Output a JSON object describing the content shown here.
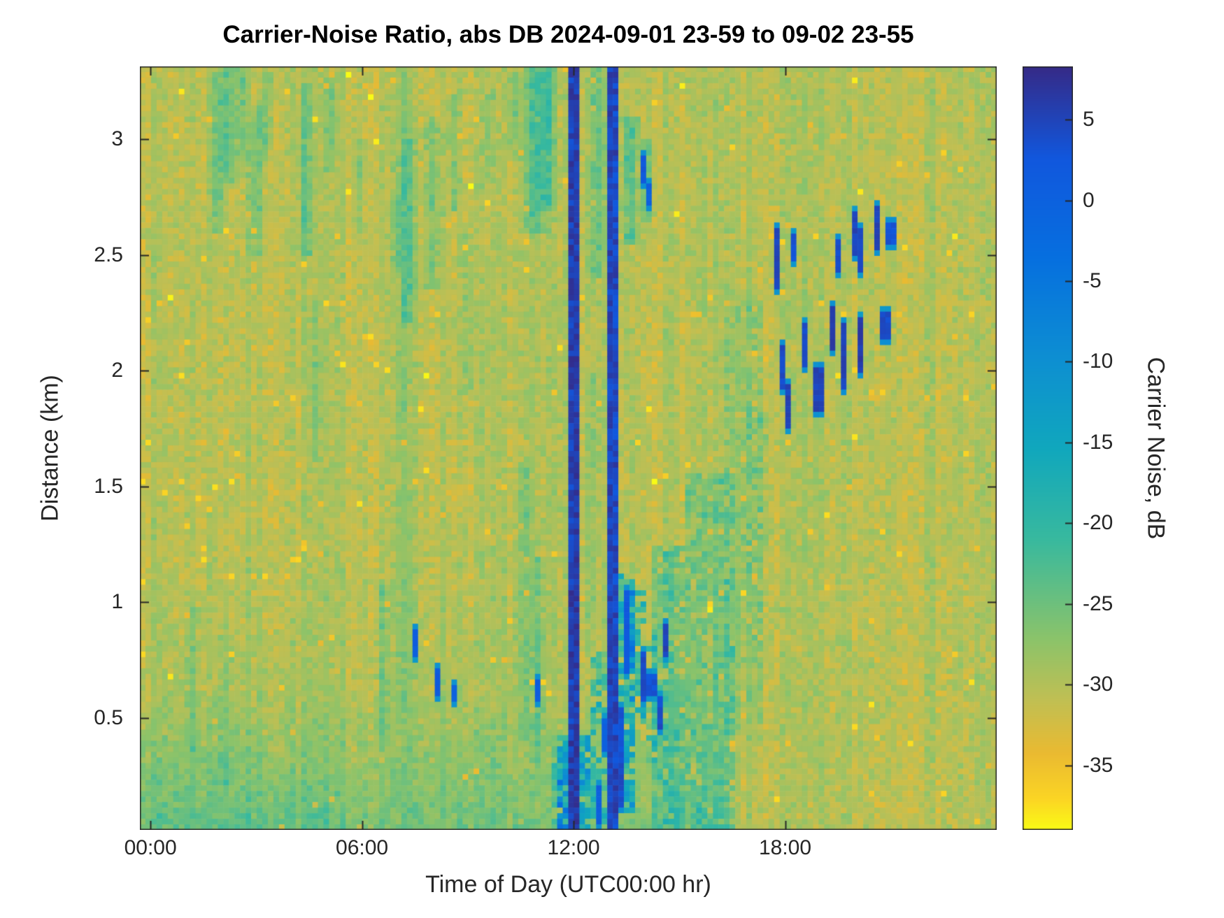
{
  "chart_data": {
    "type": "heatmap",
    "title": "Carrier-Noise Ratio, abs DB 2024-09-01 23-59 to 09-02 23-55",
    "xlabel": "Time of Day (UTC00:00 hr)",
    "ylabel": "Distance (km)",
    "colorbar_label": "Carrier Noise, dB",
    "x_range_hours": [
      -0.3,
      24.0
    ],
    "y_range_km": [
      0.015,
      3.315
    ],
    "value_range_db": [
      -39,
      8.3
    ],
    "x_ticks": [
      {
        "hour": 0,
        "label": "00:00"
      },
      {
        "hour": 6,
        "label": "06:00"
      },
      {
        "hour": 12,
        "label": "12:00"
      },
      {
        "hour": 18,
        "label": "18:00"
      }
    ],
    "y_ticks": [
      {
        "km": 0.5,
        "label": "0.5"
      },
      {
        "km": 1,
        "label": "1"
      },
      {
        "km": 1.5,
        "label": "1.5"
      },
      {
        "km": 2,
        "label": "2"
      },
      {
        "km": 2.5,
        "label": "2.5"
      },
      {
        "km": 3,
        "label": "3"
      }
    ],
    "colorbar_ticks": [
      {
        "db": 5,
        "label": "5"
      },
      {
        "db": 0,
        "label": "0"
      },
      {
        "db": -5,
        "label": "-5"
      },
      {
        "db": -10,
        "label": "-10"
      },
      {
        "db": -15,
        "label": "-15"
      },
      {
        "db": -20,
        "label": "-20"
      },
      {
        "db": -25,
        "label": "-25"
      },
      {
        "db": -30,
        "label": "-30"
      },
      {
        "db": -35,
        "label": "-35"
      }
    ],
    "legend_position": "right-colorbar",
    "grid_lines": false,
    "seed": 7,
    "grid": {
      "cols": 154,
      "rows": 137
    },
    "background": {
      "base_db": -30.2,
      "noise_db": 3.0,
      "column_banding_db": 2.4,
      "bright_speck_prob": 0.01,
      "bright_speck_drop": 6
    },
    "low_bands": [
      [
        -0.5,
        16.5,
        0.0,
        0.62,
        3.5
      ],
      [
        -0.5,
        10.5,
        0.0,
        1.3,
        1.5
      ],
      [
        -0.5,
        5.0,
        0.0,
        0.5,
        1.5
      ]
    ],
    "green_columns": [
      [
        1.9,
        0.25,
        2.6,
        3.3,
        7
      ],
      [
        2.2,
        0.3,
        2.8,
        3.35,
        8
      ],
      [
        2.6,
        0.22,
        2.9,
        3.35,
        6
      ],
      [
        3.0,
        0.3,
        2.5,
        3.15,
        5
      ],
      [
        3.3,
        0.2,
        2.9,
        3.3,
        5
      ],
      [
        4.4,
        0.28,
        2.5,
        3.25,
        7
      ],
      [
        4.65,
        0.2,
        1.6,
        2.3,
        4
      ],
      [
        5.1,
        0.2,
        2.85,
        3.3,
        5
      ],
      [
        5.9,
        0.2,
        2.6,
        3.0,
        4
      ],
      [
        6.6,
        0.22,
        0.4,
        1.1,
        4
      ],
      [
        7.15,
        0.5,
        0.5,
        3.3,
        2.5
      ],
      [
        7.3,
        0.28,
        2.2,
        3.0,
        6
      ],
      [
        7.0,
        0.2,
        2.45,
        2.75,
        5
      ],
      [
        8.0,
        0.3,
        2.35,
        3.1,
        6
      ],
      [
        8.6,
        0.22,
        2.7,
        3.2,
        5
      ],
      [
        9.0,
        0.25,
        1.9,
        2.6,
        4
      ],
      [
        9.6,
        0.22,
        2.8,
        3.2,
        4
      ],
      [
        10.3,
        0.25,
        2.9,
        3.3,
        5
      ],
      [
        10.9,
        0.4,
        2.6,
        3.35,
        8
      ],
      [
        11.25,
        0.3,
        2.7,
        3.35,
        9
      ],
      [
        10.6,
        0.3,
        0.4,
        1.6,
        4
      ],
      [
        11.0,
        0.25,
        0.3,
        1.2,
        5
      ],
      [
        12.65,
        0.3,
        2.4,
        3.35,
        6
      ],
      [
        12.5,
        0.25,
        0.9,
        2.0,
        3
      ],
      [
        13.6,
        0.3,
        2.55,
        3.1,
        8
      ],
      [
        14.1,
        0.25,
        2.65,
        3.0,
        7
      ],
      [
        1.2,
        0.25,
        0.3,
        1.0,
        3
      ],
      [
        2.1,
        0.3,
        0.2,
        0.9,
        3
      ]
    ],
    "interference_stripes": [
      [
        11.88,
        0.12,
        5.5,
        2.5
      ],
      [
        12.03,
        0.14,
        6.0,
        2.0
      ],
      [
        12.33,
        0.08,
        0.0,
        4.0
      ],
      [
        13.02,
        0.09,
        5.0,
        2.0
      ],
      [
        13.17,
        0.08,
        4.5,
        2.5
      ]
    ],
    "anomaly_blobs": [
      [
        11.3,
        11.85,
        0.0,
        0.38,
        8,
        5,
        0.7
      ],
      [
        11.55,
        12.55,
        0.0,
        0.42,
        16,
        10,
        0.85
      ],
      [
        12.55,
        13.0,
        0.0,
        0.78,
        10,
        8,
        0.6
      ],
      [
        13.25,
        13.7,
        0.08,
        1.12,
        15,
        9,
        0.8
      ],
      [
        13.6,
        14.0,
        0.5,
        1.05,
        12,
        8,
        0.65
      ],
      [
        13.9,
        14.35,
        0.3,
        0.85,
        8,
        6,
        0.55
      ],
      [
        14.2,
        15.2,
        0.0,
        1.25,
        7,
        4,
        0.85
      ],
      [
        15.2,
        16.6,
        0.0,
        1.55,
        5,
        3,
        0.85
      ],
      [
        16.2,
        17.4,
        0.4,
        2.3,
        3,
        2,
        0.7
      ],
      [
        16.8,
        17.6,
        0.8,
        2.0,
        2.5,
        2,
        0.6
      ]
    ],
    "anomaly_spots": [
      [
        17.82,
        2.36,
        2.62,
        5
      ],
      [
        17.95,
        1.92,
        2.12,
        4
      ],
      [
        18.08,
        1.76,
        1.94,
        5
      ],
      [
        18.2,
        2.48,
        2.6,
        3
      ],
      [
        18.55,
        2.02,
        2.2,
        4
      ],
      [
        18.95,
        1.82,
        2.02,
        5
      ],
      [
        19.3,
        2.08,
        2.28,
        6
      ],
      [
        19.5,
        2.42,
        2.56,
        4
      ],
      [
        19.62,
        1.92,
        2.2,
        5
      ],
      [
        19.92,
        2.5,
        2.7,
        5
      ],
      [
        20.1,
        2.0,
        2.22,
        6
      ],
      [
        20.2,
        2.42,
        2.62,
        4
      ],
      [
        20.55,
        2.52,
        2.72,
        5
      ],
      [
        20.85,
        2.14,
        2.26,
        4
      ],
      [
        21.0,
        2.55,
        2.65,
        3
      ],
      [
        7.55,
        0.76,
        0.88,
        1
      ],
      [
        8.15,
        0.6,
        0.72,
        2
      ],
      [
        8.62,
        0.56,
        0.64,
        0
      ],
      [
        11.05,
        0.58,
        0.66,
        1
      ],
      [
        13.95,
        2.8,
        2.92,
        2
      ],
      [
        14.12,
        2.72,
        2.8,
        0
      ],
      [
        14.05,
        0.56,
        0.78,
        4
      ],
      [
        14.22,
        0.6,
        0.7,
        3
      ],
      [
        13.38,
        0.3,
        0.55,
        3
      ],
      [
        13.45,
        0.7,
        1.05,
        2
      ],
      [
        13.32,
        0.12,
        0.3,
        4
      ],
      [
        12.75,
        0.05,
        0.2,
        1
      ],
      [
        12.9,
        0.35,
        0.5,
        0
      ],
      [
        14.5,
        0.45,
        0.6,
        4
      ],
      [
        14.55,
        0.75,
        0.9,
        5
      ]
    ],
    "colormap": {
      "description": "parula-style: yellow = low dB, dark blue = high dB",
      "stops": [
        [
          0.0,
          53,
          42,
          135
        ],
        [
          0.12,
          17,
          87,
          221
        ],
        [
          0.25,
          6,
          111,
          223
        ],
        [
          0.38,
          13,
          142,
          210
        ],
        [
          0.5,
          16,
          167,
          189
        ],
        [
          0.62,
          56,
          185,
          158
        ],
        [
          0.75,
          139,
          195,
          106
        ],
        [
          0.83,
          192,
          191,
          83
        ],
        [
          0.9,
          234,
          186,
          49
        ],
        [
          0.96,
          251,
          213,
          36
        ],
        [
          1.0,
          249,
          251,
          21
        ]
      ],
      "axis_color": "#262626"
    }
  }
}
